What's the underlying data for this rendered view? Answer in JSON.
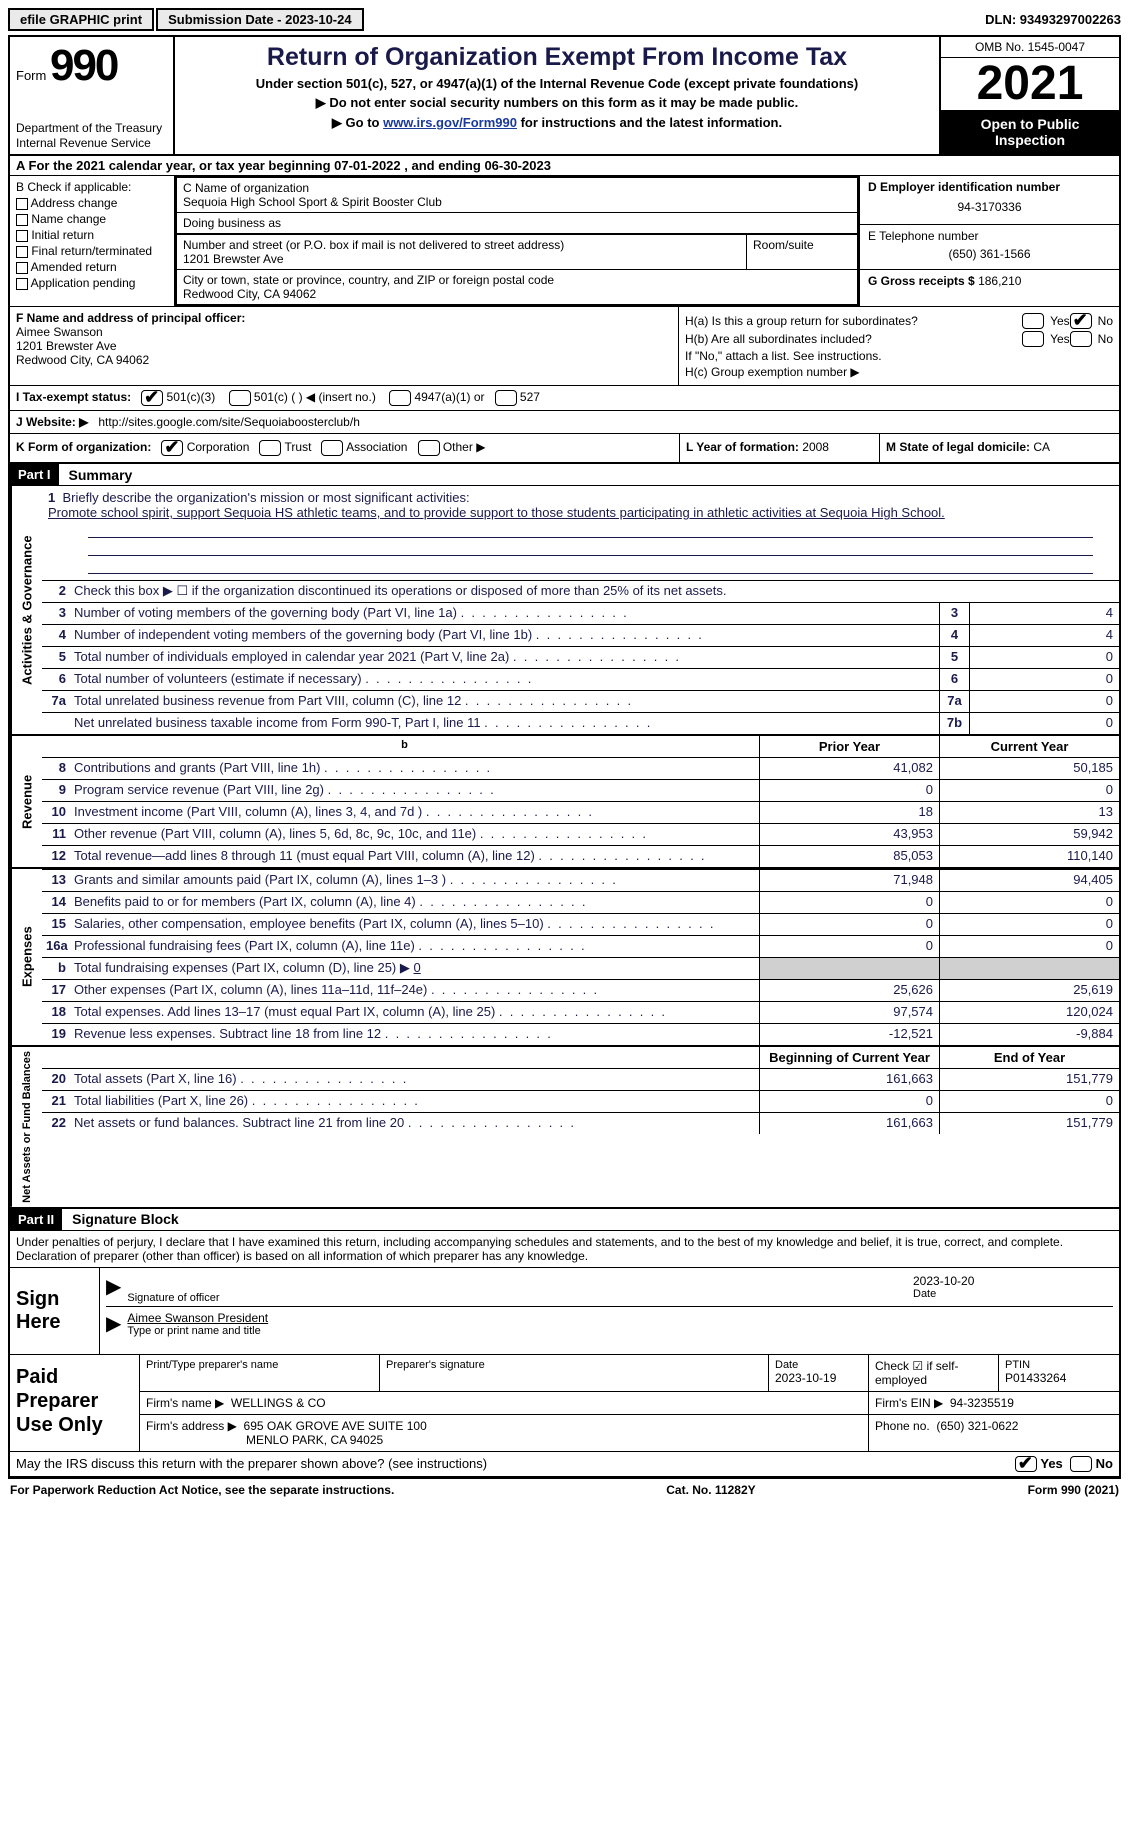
{
  "top": {
    "efile": "efile GRAPHIC print",
    "sub_date_lbl": "Submission Date - 2023-10-24",
    "dln": "DLN: 93493297002263"
  },
  "header": {
    "form_word": "Form",
    "form_num": "990",
    "dept": "Department of the Treasury\nInternal Revenue Service",
    "title": "Return of Organization Exempt From Income Tax",
    "subtitle": "Under section 501(c), 527, or 4947(a)(1) of the Internal Revenue Code (except private foundations)",
    "note1": "Do not enter social security numbers on this form as it may be made public.",
    "note2_pre": "Go to ",
    "note2_link": "www.irs.gov/Form990",
    "note2_post": " for instructions and the latest information.",
    "omb": "OMB No. 1545-0047",
    "year": "2021",
    "open": "Open to Public Inspection"
  },
  "a": {
    "text_pre": "A For the 2021 calendar year, or tax year beginning ",
    "begin": "07-01-2022",
    "mid": " , and ending ",
    "end": "06-30-2023"
  },
  "b": {
    "label": "B Check if applicable:",
    "items": [
      "Address change",
      "Name change",
      "Initial return",
      "Final return/terminated",
      "Amended return",
      "Application pending"
    ]
  },
  "c": {
    "name_lbl": "C Name of organization",
    "name": "Sequoia High School Sport & Spirit Booster Club",
    "dba_lbl": "Doing business as",
    "addr_lbl": "Number and street (or P.O. box if mail is not delivered to street address)",
    "addr": "1201 Brewster Ave",
    "room_lbl": "Room/suite",
    "city_lbl": "City or town, state or province, country, and ZIP or foreign postal code",
    "city": "Redwood City, CA  94062"
  },
  "d": {
    "ein_lbl": "D Employer identification number",
    "ein": "94-3170336",
    "phone_lbl": "E Telephone number",
    "phone": "(650) 361-1566",
    "gross_lbl": "G Gross receipts $",
    "gross": "186,210"
  },
  "f": {
    "lbl": "F Name and address of principal officer:",
    "name": "Aimee Swanson",
    "addr1": "1201 Brewster Ave",
    "addr2": "Redwood City, CA  94062"
  },
  "h": {
    "a_lbl": "H(a)  Is this a group return for subordinates?",
    "b_lbl": "H(b)  Are all subordinates included?",
    "b_note": "If \"No,\" attach a list. See instructions.",
    "c_lbl": "H(c)  Group exemption number ▶"
  },
  "i": {
    "lbl": "I  Tax-exempt status:",
    "o1": "501(c)(3)",
    "o2": "501(c) (  ) ◀ (insert no.)",
    "o3": "4947(a)(1) or",
    "o4": "527"
  },
  "j": {
    "lbl": "J  Website: ▶",
    "url": "http://sites.google.com/site/Sequoiaboosterclub/h"
  },
  "k": {
    "lbl": "K Form of organization:",
    "opts": [
      "Corporation",
      "Trust",
      "Association",
      "Other ▶"
    ]
  },
  "l": {
    "lbl": "L Year of formation:",
    "val": "2008"
  },
  "m": {
    "lbl": "M State of legal domicile:",
    "val": "CA"
  },
  "parts": {
    "p1_hdr": "Part I",
    "p1_title": "Summary",
    "p2_hdr": "Part II",
    "p2_title": "Signature Block"
  },
  "summary": {
    "side_gov": "Activities & Governance",
    "side_rev": "Revenue",
    "side_exp": "Expenses",
    "side_net": "Net Assets or Fund Balances",
    "line1_lbl": "Briefly describe the organization's mission or most significant activities:",
    "line1_text": "Promote school spirit, support Sequoia HS athletic teams, and to provide support to those students participating in athletic activities at Sequoia High School.",
    "line2": "Check this box ▶ ☐ if the organization discontinued its operations or disposed of more than 25% of its net assets.",
    "gov_rows": [
      {
        "n": "3",
        "d": "Number of voting members of the governing body (Part VI, line 1a)",
        "box": "3",
        "v": "4"
      },
      {
        "n": "4",
        "d": "Number of independent voting members of the governing body (Part VI, line 1b)",
        "box": "4",
        "v": "4"
      },
      {
        "n": "5",
        "d": "Total number of individuals employed in calendar year 2021 (Part V, line 2a)",
        "box": "5",
        "v": "0"
      },
      {
        "n": "6",
        "d": "Total number of volunteers (estimate if necessary)",
        "box": "6",
        "v": "0"
      },
      {
        "n": "7a",
        "d": "Total unrelated business revenue from Part VIII, column (C), line 12",
        "box": "7a",
        "v": "0"
      },
      {
        "n": "",
        "d": "Net unrelated business taxable income from Form 990-T, Part I, line 11",
        "box": "7b",
        "v": "0"
      }
    ],
    "hdr_prior": "Prior Year",
    "hdr_curr": "Current Year",
    "rev_rows": [
      {
        "n": "8",
        "d": "Contributions and grants (Part VIII, line 1h)",
        "p": "41,082",
        "c": "50,185"
      },
      {
        "n": "9",
        "d": "Program service revenue (Part VIII, line 2g)",
        "p": "0",
        "c": "0"
      },
      {
        "n": "10",
        "d": "Investment income (Part VIII, column (A), lines 3, 4, and 7d )",
        "p": "18",
        "c": "13"
      },
      {
        "n": "11",
        "d": "Other revenue (Part VIII, column (A), lines 5, 6d, 8c, 9c, 10c, and 11e)",
        "p": "43,953",
        "c": "59,942"
      },
      {
        "n": "12",
        "d": "Total revenue—add lines 8 through 11 (must equal Part VIII, column (A), line 12)",
        "p": "85,053",
        "c": "110,140"
      }
    ],
    "exp_rows": [
      {
        "n": "13",
        "d": "Grants and similar amounts paid (Part IX, column (A), lines 1–3 )",
        "p": "71,948",
        "c": "94,405"
      },
      {
        "n": "14",
        "d": "Benefits paid to or for members (Part IX, column (A), line 4)",
        "p": "0",
        "c": "0"
      },
      {
        "n": "15",
        "d": "Salaries, other compensation, employee benefits (Part IX, column (A), lines 5–10)",
        "p": "0",
        "c": "0"
      },
      {
        "n": "16a",
        "d": "Professional fundraising fees (Part IX, column (A), line 11e)",
        "p": "0",
        "c": "0"
      }
    ],
    "line16b_n": "b",
    "line16b_d": "Total fundraising expenses (Part IX, column (D), line 25) ▶",
    "line16b_v": "0",
    "exp_rows2": [
      {
        "n": "17",
        "d": "Other expenses (Part IX, column (A), lines 11a–11d, 11f–24e)",
        "p": "25,626",
        "c": "25,619"
      },
      {
        "n": "18",
        "d": "Total expenses. Add lines 13–17 (must equal Part IX, column (A), line 25)",
        "p": "97,574",
        "c": "120,024"
      },
      {
        "n": "19",
        "d": "Revenue less expenses. Subtract line 18 from line 12",
        "p": "-12,521",
        "c": "-9,884"
      }
    ],
    "hdr_begin": "Beginning of Current Year",
    "hdr_end": "End of Year",
    "net_rows": [
      {
        "n": "20",
        "d": "Total assets (Part X, line 16)",
        "p": "161,663",
        "c": "151,779"
      },
      {
        "n": "21",
        "d": "Total liabilities (Part X, line 26)",
        "p": "0",
        "c": "0"
      },
      {
        "n": "22",
        "d": "Net assets or fund balances. Subtract line 21 from line 20",
        "p": "161,663",
        "c": "151,779"
      }
    ]
  },
  "sig": {
    "penalties": "Under penalties of perjury, I declare that I have examined this return, including accompanying schedules and statements, and to the best of my knowledge and belief, it is true, correct, and complete. Declaration of preparer (other than officer) is based on all information of which preparer has any knowledge.",
    "sign_here": "Sign Here",
    "sig_officer_lbl": "Signature of officer",
    "sig_date": "2023-10-20",
    "date_lbl": "Date",
    "officer_name": "Aimee Swanson  President",
    "officer_lbl": "Type or print name and title",
    "paid_lbl": "Paid Preparer Use Only",
    "prep_name_lbl": "Print/Type preparer's name",
    "prep_sig_lbl": "Preparer's signature",
    "prep_date_lbl": "Date",
    "prep_date": "2023-10-19",
    "check_self_lbl": "Check ☑ if self-employed",
    "ptin_lbl": "PTIN",
    "ptin": "P01433264",
    "firm_name_lbl": "Firm's name    ▶",
    "firm_name": "WELLINGS & CO",
    "firm_ein_lbl": "Firm's EIN ▶",
    "firm_ein": "94-3235519",
    "firm_addr_lbl": "Firm's address ▶",
    "firm_addr1": "695 OAK GROVE AVE SUITE 100",
    "firm_addr2": "MENLO PARK, CA  94025",
    "firm_phone_lbl": "Phone no.",
    "firm_phone": "(650) 321-0622",
    "discuss": "May the IRS discuss this return with the preparer shown above? (see instructions)",
    "yes": "Yes",
    "no": "No"
  },
  "footer": {
    "left": "For Paperwork Reduction Act Notice, see the separate instructions.",
    "mid": "Cat. No. 11282Y",
    "right": "Form 990 (2021)"
  }
}
